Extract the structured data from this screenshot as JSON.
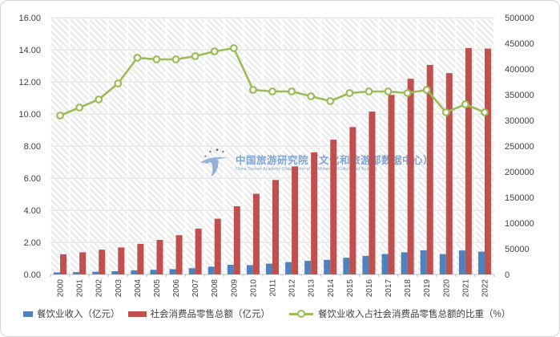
{
  "watermark": {
    "title": "中国旅游研究院（文化和旅游部数据中心）",
    "subtitle": "China Tourism Academy (Data Center of the Ministry of Culture and Tourism)"
  },
  "colors": {
    "catering_bar": "#4F81BD",
    "retail_bar": "#C0504D",
    "ratio_line": "#9BBB59",
    "marker_fill": "#FFFFFF",
    "gridline": "#D9D9D9",
    "axis_line": "#BFBFBF",
    "axis_text": "#404040",
    "watermark_text": "#7FA5D5",
    "hatch_stripe": "#E9E9E9",
    "hatch_bg": "#FCFCFC"
  },
  "chart_data": {
    "type": "combo",
    "title": "",
    "categories": [
      "2000",
      "2001",
      "2002",
      "2003",
      "2004",
      "2005",
      "2006",
      "2007",
      "2008",
      "2009",
      "2010",
      "2011",
      "2012",
      "2013",
      "2014",
      "2015",
      "2016",
      "2017",
      "2018",
      "2019",
      "2020",
      "2021",
      "2022"
    ],
    "series": [
      {
        "name": "餐饮业收入（亿元）",
        "type": "bar",
        "axis": "right",
        "color": "#4F81BD",
        "values": [
          3900,
          4500,
          5200,
          6200,
          8000,
          9000,
          10200,
          12100,
          15100,
          18700,
          18100,
          21000,
          24000,
          26400,
          28300,
          32400,
          36100,
          39800,
          43100,
          46900,
          39600,
          46700,
          44400
        ]
      },
      {
        "name": "社会消费品零售总额（亿元）",
        "type": "bar",
        "axis": "right",
        "color": "#C0504D",
        "values": [
          39100,
          43100,
          48100,
          52500,
          59500,
          67200,
          76400,
          89200,
          108500,
          132700,
          157000,
          183900,
          210300,
          237800,
          262400,
          287000,
          317000,
          349500,
          381000,
          408000,
          392000,
          440800,
          439700
        ]
      },
      {
        "name": "餐饮业收入占社会消费品零售总额的比重（%）",
        "type": "line",
        "axis": "left",
        "color": "#9BBB59",
        "values": [
          9.9,
          10.4,
          10.9,
          11.9,
          13.5,
          13.4,
          13.4,
          13.6,
          13.9,
          14.1,
          11.5,
          11.4,
          11.4,
          11.1,
          10.8,
          11.3,
          11.4,
          11.4,
          11.3,
          11.5,
          10.1,
          10.6,
          10.1
        ]
      }
    ],
    "left_axis": {
      "min": 0,
      "max": 16,
      "step": 2,
      "tick_labels": [
        "16.00",
        "14.00",
        "12.00",
        "10.00",
        "8.00",
        "6.00",
        "4.00",
        "2.00",
        "0.00"
      ]
    },
    "right_axis": {
      "min": 0,
      "max": 500000,
      "step": 50000,
      "tick_labels": [
        "500000",
        "450000",
        "400000",
        "350000",
        "300000",
        "250000",
        "200000",
        "150000",
        "100000",
        "50000",
        "0"
      ]
    },
    "legend_position": "bottom",
    "grid": true,
    "plot_background": "diagonal-hatch"
  }
}
